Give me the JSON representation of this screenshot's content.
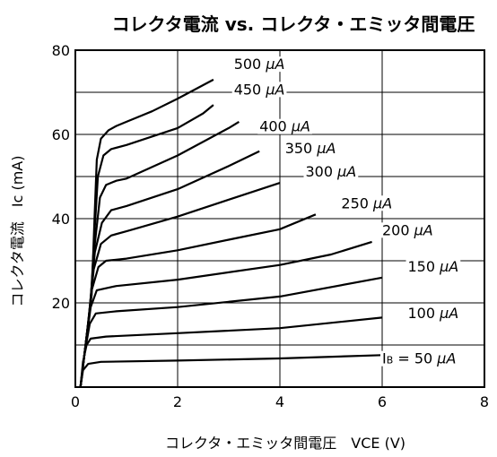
{
  "chart_data": {
    "type": "line",
    "title": "コレクタ電流 vs. コレクタ・エミッタ間電圧",
    "xlabel": "コレクタ・エミッタ間電圧　VCE (V)",
    "ylabel": "コレクタ電流　Ic (mA)",
    "xlim": [
      0,
      8
    ],
    "ylim": [
      0,
      80
    ],
    "xticks": [
      0,
      2,
      4,
      6,
      8
    ],
    "yticks": [
      20,
      40,
      60,
      80
    ],
    "y_origin_label": "0",
    "grid": true,
    "series": [
      {
        "name": "IB = 50 μA",
        "points": [
          [
            0.1,
            0
          ],
          [
            0.15,
            4
          ],
          [
            0.25,
            5.5
          ],
          [
            0.5,
            6
          ],
          [
            2,
            6.3
          ],
          [
            4,
            6.8
          ],
          [
            6,
            7.6
          ]
        ]
      },
      {
        "name": "100 μA",
        "points": [
          [
            0.1,
            0
          ],
          [
            0.15,
            6
          ],
          [
            0.22,
            10
          ],
          [
            0.3,
            11.5
          ],
          [
            0.6,
            12
          ],
          [
            2,
            12.8
          ],
          [
            4,
            14
          ],
          [
            6,
            16.5
          ]
        ]
      },
      {
        "name": "150 μA",
        "points": [
          [
            0.1,
            0
          ],
          [
            0.18,
            8
          ],
          [
            0.28,
            15
          ],
          [
            0.4,
            17.5
          ],
          [
            0.8,
            18
          ],
          [
            2,
            19
          ],
          [
            4,
            21.5
          ],
          [
            6,
            26
          ]
        ]
      },
      {
        "name": "200 μA",
        "points": [
          [
            0.1,
            0
          ],
          [
            0.2,
            10
          ],
          [
            0.3,
            19
          ],
          [
            0.42,
            23
          ],
          [
            0.8,
            24
          ],
          [
            2,
            25.5
          ],
          [
            4,
            29
          ],
          [
            5,
            31.5
          ],
          [
            5.8,
            34.5
          ]
        ]
      },
      {
        "name": "250 μA",
        "points": [
          [
            0.1,
            0
          ],
          [
            0.22,
            12
          ],
          [
            0.32,
            23
          ],
          [
            0.45,
            28.5
          ],
          [
            0.6,
            30
          ],
          [
            1,
            30.5
          ],
          [
            2,
            32.5
          ],
          [
            3,
            35
          ],
          [
            4,
            37.5
          ],
          [
            4.7,
            41
          ]
        ]
      },
      {
        "name": "300 μA",
        "points": [
          [
            0.1,
            0
          ],
          [
            0.24,
            14
          ],
          [
            0.36,
            28
          ],
          [
            0.5,
            34
          ],
          [
            0.7,
            36
          ],
          [
            1,
            37
          ],
          [
            2,
            40.5
          ],
          [
            3,
            44.5
          ],
          [
            4,
            48.5
          ]
        ]
      },
      {
        "name": "350 μA",
        "points": [
          [
            0.1,
            0
          ],
          [
            0.26,
            16
          ],
          [
            0.38,
            32
          ],
          [
            0.52,
            39
          ],
          [
            0.7,
            42
          ],
          [
            1,
            43
          ],
          [
            2,
            47
          ],
          [
            3,
            52.5
          ],
          [
            3.6,
            56
          ]
        ]
      },
      {
        "name": "400 μA",
        "points": [
          [
            0.1,
            0
          ],
          [
            0.28,
            18
          ],
          [
            0.38,
            34
          ],
          [
            0.48,
            45
          ],
          [
            0.6,
            48
          ],
          [
            0.8,
            49
          ],
          [
            1,
            49.5
          ],
          [
            2,
            55
          ],
          [
            3,
            61.5
          ],
          [
            3.2,
            63
          ]
        ]
      },
      {
        "name": "450 μA",
        "points": [
          [
            0.1,
            0
          ],
          [
            0.3,
            20
          ],
          [
            0.38,
            38
          ],
          [
            0.44,
            50
          ],
          [
            0.55,
            55
          ],
          [
            0.7,
            56.5
          ],
          [
            1,
            57.5
          ],
          [
            2,
            61.5
          ],
          [
            2.5,
            65
          ],
          [
            2.7,
            67
          ]
        ]
      },
      {
        "name": "500 μA",
        "points": [
          [
            0.1,
            0
          ],
          [
            0.32,
            22
          ],
          [
            0.38,
            42
          ],
          [
            0.42,
            54
          ],
          [
            0.5,
            59
          ],
          [
            0.65,
            61
          ],
          [
            0.8,
            62
          ],
          [
            1,
            63
          ],
          [
            1.5,
            65.5
          ],
          [
            2,
            68.5
          ],
          [
            2.7,
            73
          ]
        ]
      }
    ],
    "curve_labels": [
      {
        "pre": "500 ",
        "unit": "μA",
        "at": [
          3.1,
          75.5
        ]
      },
      {
        "pre": "450 ",
        "unit": "μA",
        "at": [
          3.1,
          69.5
        ]
      },
      {
        "pre": "400 ",
        "unit": "μA",
        "at": [
          3.6,
          60.7
        ]
      },
      {
        "pre": "350 ",
        "unit": "μA",
        "at": [
          4.1,
          55.5
        ]
      },
      {
        "pre": "300 ",
        "unit": "μA",
        "at": [
          4.5,
          50.0
        ]
      },
      {
        "pre": "250 ",
        "unit": "μA",
        "at": [
          5.2,
          42.5
        ]
      },
      {
        "pre": "200 ",
        "unit": "μA",
        "at": [
          6.0,
          36.1
        ]
      },
      {
        "pre": "150 ",
        "unit": "μA",
        "at": [
          6.5,
          27.5
        ]
      },
      {
        "pre": "100 ",
        "unit": "μA",
        "at": [
          6.5,
          16.4
        ]
      },
      {
        "pre": "= 50 ",
        "unit": "μA",
        "lead": "I",
        "sub": "B",
        "at": [
          6.0,
          5.6
        ]
      }
    ]
  }
}
